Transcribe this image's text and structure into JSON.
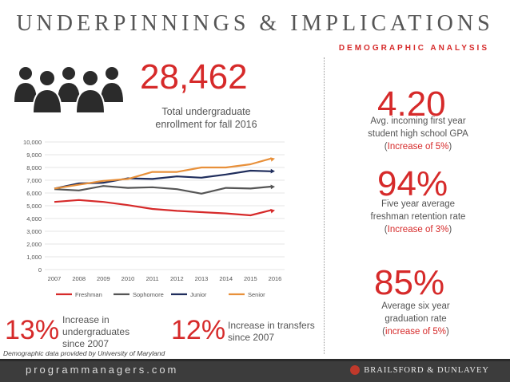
{
  "header": {
    "title": "UNDERPINNINGS & IMPLICATIONS",
    "subtitle": "DEMOGRAPHIC ANALYSIS"
  },
  "icon": "people-group-icon",
  "enrollment": {
    "value": "28,462",
    "caption_line1": "Total undergraduate",
    "caption_line2": "enrollment for fall 2016"
  },
  "gpa": {
    "value": "4.20",
    "caption_line1": "Avg. incoming first year",
    "caption_line2": "student high school GPA",
    "change_open": "(",
    "change": "Increase of 5%",
    "change_close": ")"
  },
  "retention": {
    "value": "94%",
    "caption_line1": "Five year average",
    "caption_line2": "freshman retention rate",
    "change_open": "(",
    "change": "Increase of 3%",
    "change_close": ")"
  },
  "graduation": {
    "value": "85%",
    "caption_line1": "Average six year",
    "caption_line2": "graduation rate",
    "change_open": "(",
    "change": "increase of 5%",
    "change_close": ")"
  },
  "undergrad_increase": {
    "value": "13%",
    "caption_line1": "Increase in",
    "caption_line2": "undergraduates",
    "caption_line3": "since 2007"
  },
  "transfer_increase": {
    "value": "12%",
    "caption_line1": "Increase in transfers",
    "caption_line2": "since 2007"
  },
  "source": "Demographic data provided by University of Maryland",
  "footer": {
    "left": "programmanagers.com",
    "right": "BRAILSFORD & DUNLAVEY"
  },
  "colors": {
    "accent": "#d62a2a",
    "freshman": "#d62a2a",
    "sophomore": "#555555",
    "junior": "#1f2d5c",
    "senior": "#e8903a"
  },
  "chart_data": {
    "type": "line",
    "x": [
      "2007",
      "2008",
      "2009",
      "2010",
      "2011",
      "2012",
      "2013",
      "2014",
      "2015",
      "2016"
    ],
    "y_ticks": [
      "0",
      "1,000",
      "2,000",
      "3,000",
      "4,000",
      "5,000",
      "6,000",
      "7,000",
      "8,000",
      "9,000",
      "10,000"
    ],
    "ylim": [
      0,
      10000
    ],
    "grid": true,
    "legend_position": "bottom",
    "series": [
      {
        "name": "Freshman",
        "color": "#d62a2a",
        "values": [
          5300,
          5450,
          5300,
          5050,
          4750,
          4600,
          4500,
          4400,
          4250,
          4650
        ]
      },
      {
        "name": "Sophomore",
        "color": "#555555",
        "values": [
          6300,
          6200,
          6550,
          6400,
          6450,
          6300,
          5950,
          6400,
          6350,
          6500
        ]
      },
      {
        "name": "Junior",
        "color": "#1f2d5c",
        "values": [
          6350,
          6750,
          6800,
          7150,
          7100,
          7300,
          7200,
          7450,
          7750,
          7700
        ]
      },
      {
        "name": "Senior",
        "color": "#e8903a",
        "values": [
          6350,
          6650,
          6950,
          7100,
          7650,
          7650,
          8000,
          8000,
          8250,
          8700
        ]
      }
    ]
  }
}
